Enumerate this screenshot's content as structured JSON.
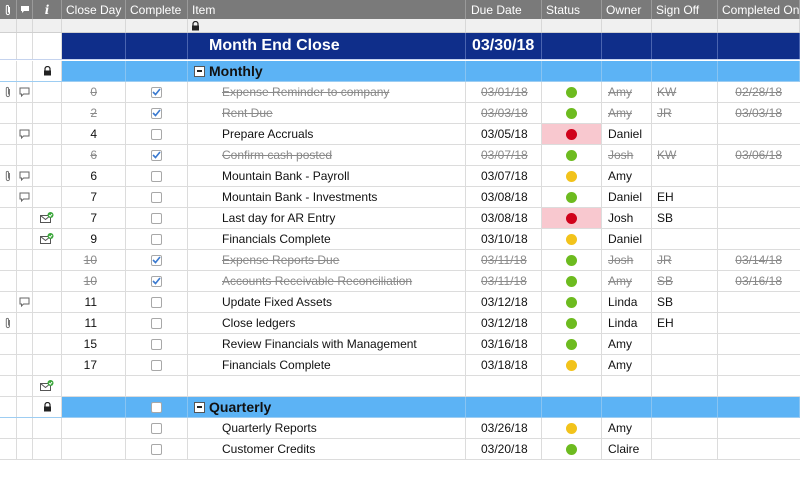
{
  "header": {
    "close_day": "Close Day",
    "complete": "Complete",
    "item": "Item",
    "due_date": "Due Date",
    "status": "Status",
    "owner": "Owner",
    "sign_off": "Sign Off",
    "completed_on": "Completed On",
    "info_symbol": "i"
  },
  "title_row": {
    "item": "Month End Close",
    "due": "03/30/18"
  },
  "sections": [
    {
      "label": "Monthly",
      "rows": [
        {
          "day": "0",
          "complete": true,
          "item": "Expense Reminder to company",
          "due": "03/01/18",
          "status": "green",
          "owner": "Amy",
          "sign": "KW",
          "completed_on": "02/28/18",
          "done": true,
          "attach": true,
          "comment": true,
          "mail": false
        },
        {
          "day": "2",
          "complete": true,
          "item": "Rent Due",
          "due": "03/03/18",
          "status": "green",
          "owner": "Amy",
          "sign": "JR",
          "completed_on": "03/03/18",
          "done": true,
          "attach": false,
          "comment": false,
          "mail": false
        },
        {
          "day": "4",
          "complete": false,
          "item": "Prepare Accruals",
          "due": "03/05/18",
          "status": "red",
          "owner": "Daniel",
          "sign": "",
          "completed_on": "",
          "done": false,
          "attach": false,
          "comment": true,
          "mail": false
        },
        {
          "day": "6",
          "complete": true,
          "item": "Confirm cash posted",
          "due": "03/07/18",
          "status": "green",
          "owner": "Josh",
          "sign": "KW",
          "completed_on": "03/06/18",
          "done": true,
          "attach": false,
          "comment": false,
          "mail": false
        },
        {
          "day": "6",
          "complete": false,
          "item": "Mountain Bank - Payroll",
          "due": "03/07/18",
          "status": "yellow",
          "owner": "Amy",
          "sign": "",
          "completed_on": "",
          "done": false,
          "attach": true,
          "comment": true,
          "mail": false
        },
        {
          "day": "7",
          "complete": false,
          "item": "Mountain Bank - Investments",
          "due": "03/08/18",
          "status": "green",
          "owner": "Daniel",
          "sign": "EH",
          "completed_on": "",
          "done": false,
          "attach": false,
          "comment": true,
          "mail": false
        },
        {
          "day": "7",
          "complete": false,
          "item": "Last day for AR Entry",
          "due": "03/08/18",
          "status": "red",
          "owner": "Josh",
          "sign": "SB",
          "completed_on": "",
          "done": false,
          "attach": false,
          "comment": false,
          "mail": true
        },
        {
          "day": "9",
          "complete": false,
          "item": "Financials Complete",
          "due": "03/10/18",
          "status": "yellow",
          "owner": "Daniel",
          "sign": "",
          "completed_on": "",
          "done": false,
          "attach": false,
          "comment": false,
          "mail": true
        },
        {
          "day": "10",
          "complete": true,
          "item": "Expense Reports Due",
          "due": "03/11/18",
          "status": "green",
          "owner": "Josh",
          "sign": "JR",
          "completed_on": "03/14/18",
          "done": true,
          "attach": false,
          "comment": false,
          "mail": false
        },
        {
          "day": "10",
          "complete": true,
          "item": "Accounts Receivable Reconciliation",
          "due": "03/11/18",
          "status": "green",
          "owner": "Amy",
          "sign": "SB",
          "completed_on": "03/16/18",
          "done": true,
          "attach": false,
          "comment": false,
          "mail": false
        },
        {
          "day": "11",
          "complete": false,
          "item": "Update Fixed Assets",
          "due": "03/12/18",
          "status": "green",
          "owner": "Linda",
          "sign": "SB",
          "completed_on": "",
          "done": false,
          "attach": false,
          "comment": true,
          "mail": false
        },
        {
          "day": "11",
          "complete": false,
          "item": "Close ledgers",
          "due": "03/12/18",
          "status": "green",
          "owner": "Linda",
          "sign": "EH",
          "completed_on": "",
          "done": false,
          "attach": true,
          "comment": false,
          "mail": false
        },
        {
          "day": "15",
          "complete": false,
          "item": "Review Financials with Management",
          "due": "03/16/18",
          "status": "green",
          "owner": "Amy",
          "sign": "",
          "completed_on": "",
          "done": false,
          "attach": false,
          "comment": false,
          "mail": false
        },
        {
          "day": "17",
          "complete": false,
          "item": "Financials Complete",
          "due": "03/18/18",
          "status": "yellow",
          "owner": "Amy",
          "sign": "",
          "completed_on": "",
          "done": false,
          "attach": false,
          "comment": false,
          "mail": false
        },
        {
          "day": "",
          "complete": null,
          "item": "",
          "due": "",
          "status": "",
          "owner": "",
          "sign": "",
          "completed_on": "",
          "done": false,
          "attach": false,
          "comment": false,
          "mail": true
        }
      ]
    },
    {
      "label": "Quarterly",
      "rows": [
        {
          "day": "",
          "complete": false,
          "item": "Quarterly Reports",
          "due": "03/26/18",
          "status": "yellow",
          "owner": "Amy",
          "sign": "",
          "completed_on": "",
          "done": false,
          "attach": false,
          "comment": false,
          "mail": false
        },
        {
          "day": "",
          "complete": false,
          "item": "Customer Credits",
          "due": "03/20/18",
          "status": "green",
          "owner": "Claire",
          "sign": "",
          "completed_on": "",
          "done": false,
          "attach": false,
          "comment": false,
          "mail": false
        }
      ]
    }
  ],
  "colors": {
    "green": "#6dbb1f",
    "yellow": "#f2c31b",
    "red": "#d0021b",
    "title_bg": "#0f2e8a",
    "section_bg": "#5cb3f5",
    "header_bg": "#7a7a7a"
  },
  "icons": {
    "attachment": "paperclip-icon",
    "comment": "comment-icon",
    "mail": "mail-icon",
    "lock": "lock-icon",
    "collapse": "collapse-icon",
    "checkbox": "checkbox-icon"
  }
}
